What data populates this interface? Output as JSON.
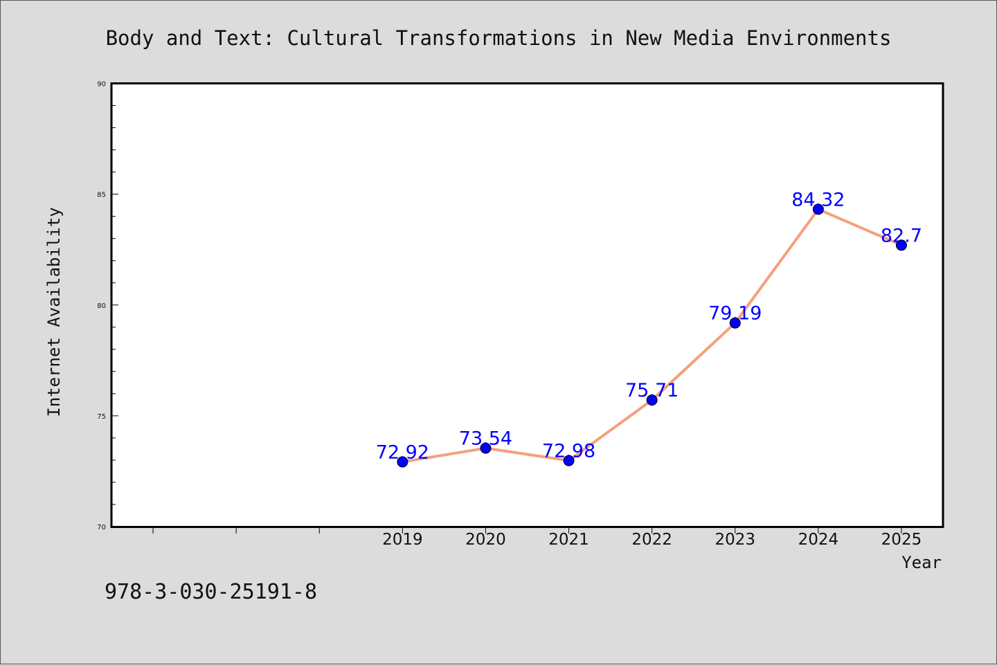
{
  "chart_data": {
    "type": "line",
    "title": "Body and Text: Cultural Transformations in New Media Environments",
    "xlabel": "Year",
    "ylabel": "Internet Availability",
    "categories": [
      "2019",
      "2020",
      "2021",
      "2022",
      "2023",
      "2024",
      "2025"
    ],
    "values": [
      72.92,
      73.54,
      72.98,
      75.71,
      79.19,
      84.32,
      82.7
    ],
    "data_labels": [
      "72.92",
      "73.54",
      "72.98",
      "75.71",
      "79.19",
      "84.32",
      "82.7"
    ],
    "ylim": [
      70,
      90
    ],
    "xlim": [
      2015.5,
      2025.5
    ],
    "yticks": [
      "70",
      "75",
      "80",
      "85",
      "90"
    ],
    "grid": false,
    "line_color": "#f4a07c",
    "marker_color": "#0000ff"
  },
  "footer": {
    "isbn": "978-3-030-25191-8"
  }
}
